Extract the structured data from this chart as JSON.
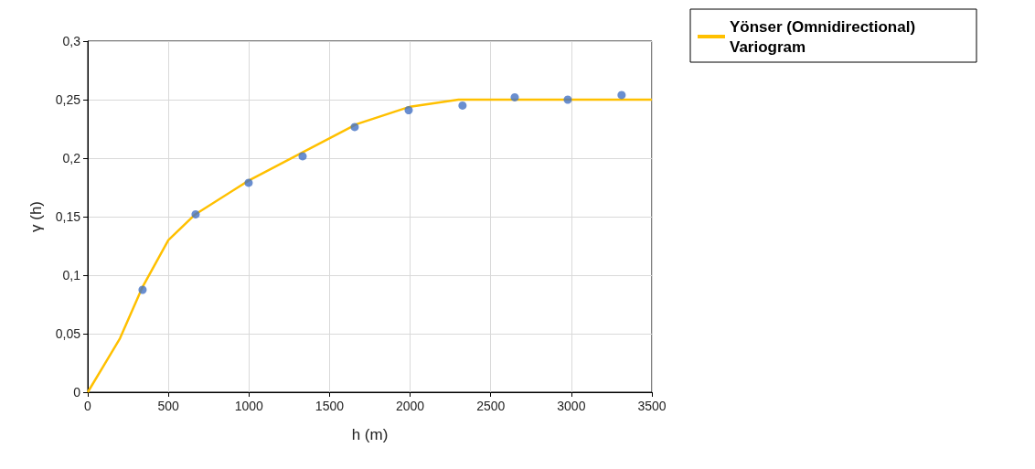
{
  "chart_data": {
    "type": "line",
    "xlabel": "h (m)",
    "ylabel": "γ (h)",
    "xlim": [
      0,
      3500
    ],
    "xticks": [
      0,
      500,
      1000,
      1500,
      2000,
      2500,
      3000,
      3500
    ],
    "ylim": [
      0,
      0.3
    ],
    "yticks": [
      0,
      {
        "value": 0.05,
        "label": "0,05"
      },
      {
        "value": 0.1,
        "label": "0,1"
      },
      {
        "value": 0.15,
        "label": "0,15"
      },
      {
        "value": 0.2,
        "label": "0,2"
      },
      {
        "value": 0.25,
        "label": "0,25"
      },
      {
        "value": 0.3,
        "label": "0,3"
      }
    ],
    "grid": true,
    "legend": "top right",
    "marker": "circle",
    "series": [
      {
        "type": "scatter",
        "color": "#4472c4",
        "x": [
          340,
          669,
          998,
          1333,
          1656,
          1991,
          2325,
          2649,
          2978,
          3312
        ],
        "values": [
          0.0875,
          0.152,
          0.179,
          0.2016,
          0.2266,
          0.241,
          0.245,
          0.252,
          0.25,
          0.254
        ]
      },
      {
        "name": "Yönser (Omnidirectional) Variogram",
        "color": "#ffc000",
        "marker": "none",
        "line_style": "solid",
        "x": [
          0,
          100,
          200,
          340,
          500,
          667,
          1000,
          1333,
          1667,
          2000,
          2300,
          2600,
          3000,
          3500
        ],
        "values": [
          0,
          0.023,
          0.046,
          0.09,
          0.13,
          0.152,
          0.181,
          0.205,
          0.229,
          0.244,
          0.25,
          0.25,
          0.25,
          0.25
        ]
      }
    ]
  }
}
